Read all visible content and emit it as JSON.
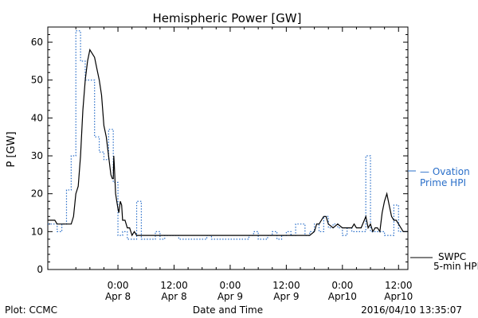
{
  "footer": {
    "plot_credit": "Plot: CCMC",
    "timestamp": "2016/04/10 13:35:07"
  },
  "legend": {
    "ovation_line1": "— Ovation",
    "ovation_line2": "Prime HPI",
    "swpc_line1": "SWPC",
    "swpc_line2": "5-min HPI"
  },
  "chart_data": {
    "type": "line",
    "title": "Hemispheric Power [GW]",
    "xlabel": "Date and Time",
    "ylabel": "P [GW]",
    "x_unit": "hours relative to 2016-04-08 00:00 UT",
    "xlim": [
      -15,
      62
    ],
    "ylim": [
      0,
      64
    ],
    "yticks": [
      0,
      10,
      20,
      30,
      40,
      50,
      60
    ],
    "xticks": [
      {
        "x": 0,
        "line1": "0:00",
        "line2": "Apr 8"
      },
      {
        "x": 12,
        "line1": "12:00",
        "line2": "Apr 8"
      },
      {
        "x": 24,
        "line1": "0:00",
        "line2": "Apr 9"
      },
      {
        "x": 36,
        "line1": "12:00",
        "line2": "Apr 9"
      },
      {
        "x": 48,
        "line1": "0:00",
        "line2": "Apr10"
      },
      {
        "x": 60,
        "line1": "12:00",
        "line2": "Apr10"
      }
    ],
    "colors": {
      "swpc": "#000000",
      "ovation": "#2a6fc9"
    },
    "series": [
      {
        "name": "Ovation Prime HPI",
        "style": "dotted-step",
        "x": [
          -15,
          -13,
          -12,
          -11,
          -10,
          -9,
          -8,
          -7,
          -6,
          -5,
          -4,
          -3,
          -2,
          -1,
          0,
          1,
          2,
          3,
          4,
          5,
          6,
          7,
          8,
          9,
          10,
          11,
          12,
          13,
          14,
          15,
          16,
          17,
          18,
          19,
          20,
          21,
          22,
          23,
          24,
          25,
          26,
          27,
          28,
          29,
          30,
          31,
          32,
          33,
          34,
          35,
          36,
          37,
          38,
          39,
          40,
          41,
          42,
          43,
          44,
          45,
          46,
          47,
          48,
          49,
          50,
          51,
          52,
          53,
          54,
          55,
          56,
          57,
          58,
          59,
          60,
          61,
          62
        ],
        "y": [
          12,
          10,
          12,
          21,
          30,
          63,
          55,
          50,
          50,
          35,
          31,
          29,
          37,
          23,
          9,
          10,
          8,
          8,
          18,
          8,
          8,
          8,
          10,
          8,
          9,
          9,
          9,
          8,
          8,
          8,
          8,
          8,
          8,
          9,
          8,
          8,
          8,
          8,
          8,
          8,
          8,
          8,
          9,
          10,
          8,
          8,
          9,
          10,
          8,
          9,
          10,
          9,
          12,
          12,
          9,
          10,
          12,
          10,
          14,
          11,
          12,
          11,
          9,
          11,
          10,
          10,
          10,
          30,
          10,
          10,
          10,
          9,
          9,
          17,
          10,
          10,
          10
        ]
      },
      {
        "name": "SWPC 5-min HPI",
        "style": "solid",
        "x": [
          -15,
          -13.5,
          -13,
          -12,
          -10,
          -9.5,
          -9,
          -8.5,
          -8,
          -7.5,
          -7,
          -6.5,
          -6,
          -5.5,
          -5,
          -4.5,
          -4,
          -3.5,
          -3,
          -2.5,
          -2,
          -1.5,
          -1.2,
          -1,
          -0.9,
          -0.8,
          -0.5,
          0,
          0.2,
          0.5,
          0.8,
          1,
          1.5,
          2,
          2.5,
          3,
          3.5,
          4,
          5,
          10,
          20,
          24,
          30,
          34,
          38,
          40,
          41,
          42,
          42.5,
          43,
          43.5,
          44,
          44.5,
          45,
          46,
          47,
          48,
          49,
          49.5,
          50,
          50.5,
          51,
          52,
          53,
          53.5,
          54,
          54.5,
          55,
          55.5,
          56,
          56.5,
          57,
          57.5,
          58,
          58.5,
          59,
          59.5,
          60,
          60.5,
          61,
          62
        ],
        "y": [
          13,
          13,
          12,
          12,
          12,
          14,
          20,
          22,
          30,
          42,
          50,
          55,
          58,
          57,
          56,
          53,
          50,
          46,
          38,
          35,
          30,
          25,
          24,
          24,
          30,
          28,
          20,
          16,
          15,
          18,
          17,
          13,
          13,
          11,
          11,
          9,
          10,
          9,
          9,
          9,
          9,
          9,
          9,
          9,
          9,
          9,
          9,
          10,
          12,
          12,
          13,
          14,
          14,
          12,
          11,
          12,
          11,
          11,
          11,
          11,
          12,
          11,
          11,
          14,
          11,
          12,
          10,
          11,
          11,
          10,
          15,
          18,
          20,
          17,
          14,
          13,
          13,
          12,
          11,
          10,
          10
        ]
      }
    ]
  }
}
